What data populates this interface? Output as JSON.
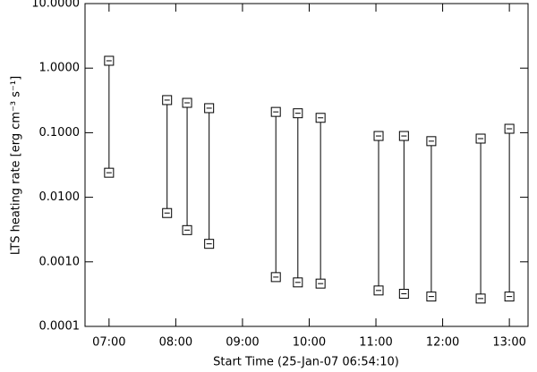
{
  "chart_data": {
    "type": "range",
    "x_label": "Start Time (25-Jan-07 06:54:10)",
    "y_label": "LTS heating rate [erg cm⁻³ s⁻¹]",
    "log_y": true,
    "color": "#000000",
    "x": [
      7.0,
      7.87,
      8.17,
      8.5,
      9.5,
      9.83,
      10.17,
      11.04,
      11.42,
      11.83,
      12.57,
      13.0
    ],
    "series": [
      {
        "values": [
          1.3,
          0.32,
          0.29,
          0.24,
          0.21,
          0.2,
          0.17,
          0.089,
          0.089,
          0.074,
          0.081,
          0.115
        ]
      },
      {
        "values": [
          0.024,
          0.0057,
          0.0031,
          0.0019,
          0.00058,
          0.00048,
          0.00046,
          0.00036,
          0.00032,
          0.00029,
          0.00027,
          0.00029
        ]
      }
    ],
    "xlim": [
      6.64,
      13.28
    ],
    "xticks": [
      {
        "value": 7,
        "label": "07:00"
      },
      {
        "value": 8,
        "label": "08:00"
      },
      {
        "value": 9,
        "label": "09:00"
      },
      {
        "value": 10,
        "label": "10:00"
      },
      {
        "value": 11,
        "label": "11:00"
      },
      {
        "value": 12,
        "label": "12:00"
      },
      {
        "value": 13,
        "label": "13:00"
      }
    ],
    "ylim": [
      0.0001,
      10
    ],
    "yticks": [
      {
        "value": 0.0001,
        "label": "0.0001"
      },
      {
        "value": 0.001,
        "label": "0.0010"
      },
      {
        "value": 0.01,
        "label": "0.0100"
      },
      {
        "value": 0.1,
        "label": "0.1000"
      },
      {
        "value": 1,
        "label": "1.0000"
      },
      {
        "value": 10,
        "label": "10.0000"
      }
    ]
  }
}
